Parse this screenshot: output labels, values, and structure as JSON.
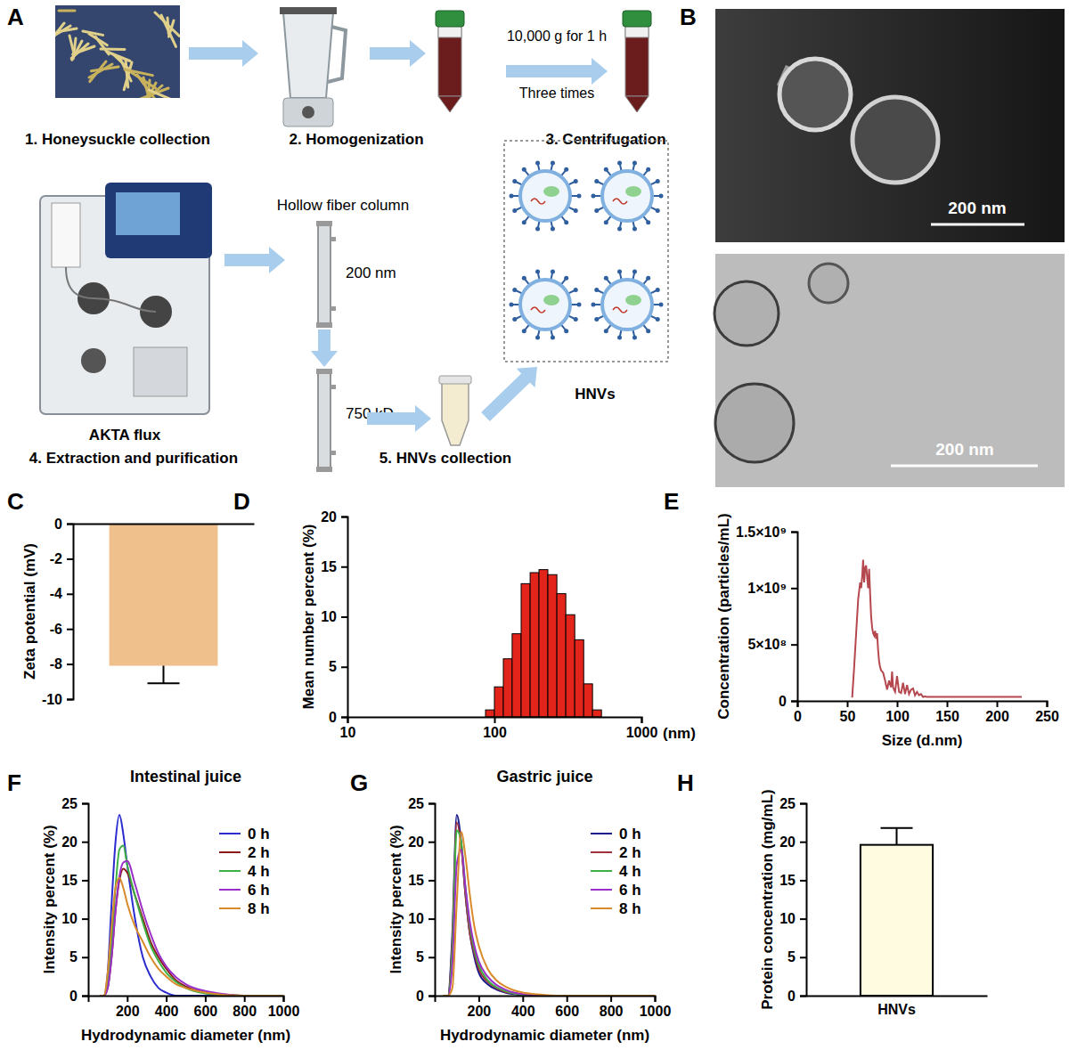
{
  "diagram": {
    "panel": "A",
    "steps": [
      "1. Honeysuckle collection",
      "2. Homogenization",
      "3. Centrifugation",
      "4. Extraction and purification",
      "5. HNVs collection"
    ],
    "centrifugation": [
      "10,000 g for 1 h",
      "Three times"
    ],
    "instrument": "AKTA flux",
    "column_title": "Hollow fiber column",
    "columns": [
      "200 nm",
      "750 kD"
    ],
    "product": "HNVs"
  },
  "micrographs": {
    "panel": "B",
    "scale_bars": [
      "200 nm",
      "200 nm"
    ]
  },
  "chart_data": [
    {
      "panel": "C",
      "type": "bar",
      "categories": [
        null
      ],
      "values": [
        -8.1
      ],
      "errors": [
        1.0
      ],
      "color": "#f0c08c",
      "ylabel": "Zeta potential (mV)",
      "ylim": [
        -10,
        0
      ],
      "yticks": [
        0,
        -2,
        -4,
        -6,
        -8,
        -10
      ]
    },
    {
      "panel": "D",
      "type": "histogram",
      "bins": [
        87,
        100,
        115,
        132,
        152,
        175,
        201,
        231,
        266,
        306,
        352,
        405,
        465,
        535
      ],
      "values": [
        0.7,
        3.0,
        5.8,
        8.3,
        13.3,
        14.4,
        14.7,
        14.2,
        12.3,
        10.2,
        7.7,
        3.3,
        0.7
      ],
      "color": "#e3241b",
      "xlabel": "(nm)",
      "ylabel": "Mean number percent (%)",
      "log": "x",
      "xlim": [
        10,
        1000
      ],
      "xticks": [
        10,
        100,
        1000
      ],
      "ylim": [
        0,
        20
      ],
      "yticks": [
        0,
        5,
        10,
        15,
        20
      ]
    },
    {
      "panel": "E",
      "type": "line",
      "x": [
        55,
        57,
        59,
        61,
        63,
        64,
        65,
        66,
        67,
        68,
        69,
        70,
        71,
        72,
        73,
        74,
        75,
        76,
        77,
        78,
        79,
        80,
        81,
        82,
        83,
        84,
        86,
        88,
        90,
        92,
        94,
        95,
        96,
        98,
        100,
        102,
        104,
        106,
        108,
        110,
        112,
        114,
        116,
        118,
        120,
        122,
        124,
        126,
        128,
        130,
        140,
        160,
        180,
        200,
        225
      ],
      "values": [
        30000000,
        300000000,
        600000000,
        900000000,
        1050000000,
        1000000000,
        1100000000,
        1250000000,
        1050000000,
        1180000000,
        1200000000,
        1100000000,
        1000000000,
        1170000000,
        950000000,
        750000000,
        650000000,
        600000000,
        580000000,
        620000000,
        550000000,
        600000000,
        450000000,
        350000000,
        300000000,
        270000000,
        250000000,
        180000000,
        100000000,
        180000000,
        120000000,
        260000000,
        120000000,
        80000000,
        220000000,
        80000000,
        70000000,
        160000000,
        60000000,
        140000000,
        60000000,
        100000000,
        110000000,
        50000000,
        80000000,
        50000000,
        60000000,
        35000000,
        40000000,
        35000000,
        35000000,
        35000000,
        35000000,
        35000000,
        35000000
      ],
      "color": "#b5484e",
      "xlabel": "Size (d.nm)",
      "ylabel": "Concentration (particles/mL)",
      "xlim": [
        0,
        250
      ],
      "xticks": [
        0,
        50,
        100,
        150,
        200,
        250
      ],
      "ylim": [
        0,
        1500000000
      ],
      "yticks": [
        0,
        {
          "value": 500000000,
          "label": "5×10⁸"
        },
        {
          "value": 1000000000,
          "label": "1×10⁹"
        },
        {
          "value": 1500000000,
          "label": "1.5×10⁹"
        }
      ]
    },
    {
      "panel": "F",
      "type": "line",
      "title": "Intestinal juice",
      "x": [
        60,
        80,
        100,
        120,
        140,
        160,
        180,
        200,
        240,
        280,
        320,
        360,
        400,
        450,
        500,
        600,
        700,
        800,
        1000
      ],
      "series": [
        {
          "name": "0 h",
          "color": "#2b2bd0",
          "values": [
            0,
            0,
            3,
            12,
            20,
            23.5,
            21,
            17,
            10,
            5,
            2.5,
            1,
            0.4,
            0,
            0,
            0,
            0,
            0,
            0
          ]
        },
        {
          "name": "2 h",
          "color": "#8b1a1a",
          "values": [
            0,
            0,
            1,
            5,
            11,
            15,
            16.5,
            16,
            13,
            10,
            7,
            5,
            3.5,
            2,
            1.2,
            0.4,
            0.1,
            0,
            0
          ]
        },
        {
          "name": "4 h",
          "color": "#3cb043",
          "values": [
            0,
            0,
            1.5,
            7,
            14,
            19,
            19.5,
            17,
            13,
            9.5,
            6.5,
            4.5,
            3,
            1.8,
            1,
            0.3,
            0.1,
            0,
            0
          ]
        },
        {
          "name": "6 h",
          "color": "#9b30c8",
          "values": [
            0,
            0,
            1,
            5,
            11,
            15.5,
            17.3,
            17.5,
            14.5,
            11,
            8,
            5.5,
            3.8,
            2.4,
            1.5,
            0.6,
            0.2,
            0,
            0
          ]
        },
        {
          "name": "8 h",
          "color": "#d98b2b",
          "values": [
            0,
            0,
            3,
            9,
            14,
            15.3,
            14,
            12,
            9,
            7,
            5,
            3.5,
            2.5,
            1.5,
            1,
            0.4,
            0.1,
            0,
            0
          ]
        }
      ],
      "xlabel": "Hydrodynamic diameter (nm)",
      "ylabel": "Intensity percent (%)",
      "legend": "top-right",
      "xlim": [
        0,
        1000
      ],
      "xticks": [
        200,
        400,
        600,
        800,
        1000
      ],
      "ylim": [
        0,
        25
      ],
      "yticks": [
        0,
        5,
        10,
        15,
        20,
        25
      ]
    },
    {
      "panel": "G",
      "type": "line",
      "title": "Gastric juice",
      "x": [
        40,
        60,
        80,
        100,
        120,
        140,
        160,
        180,
        200,
        240,
        280,
        320,
        360,
        400,
        450,
        500,
        600,
        700,
        800,
        1000
      ],
      "series": [
        {
          "name": "0 h",
          "color": "#1a1a8c",
          "values": [
            0,
            0,
            8,
            23.5,
            20,
            13,
            8,
            5,
            3,
            1.5,
            0.8,
            0.4,
            0.2,
            0.1,
            0,
            0,
            0,
            0,
            0,
            0
          ]
        },
        {
          "name": "2 h",
          "color": "#a0303a",
          "values": [
            0,
            0,
            7,
            22.5,
            19.5,
            13,
            8,
            5.5,
            3.5,
            1.8,
            1,
            0.5,
            0.3,
            0.1,
            0,
            0,
            0,
            0,
            0,
            0
          ]
        },
        {
          "name": "4 h",
          "color": "#3cb043",
          "values": [
            0,
            0,
            6,
            21.5,
            20,
            14,
            9,
            6,
            4,
            2,
            1.1,
            0.6,
            0.3,
            0.1,
            0,
            0,
            0,
            0,
            0,
            0
          ]
        },
        {
          "name": "6 h",
          "color": "#9b30c8",
          "values": [
            0,
            0,
            4,
            17,
            19,
            14,
            9.5,
            6.5,
            4.5,
            2.5,
            1.4,
            0.8,
            0.4,
            0.2,
            0.1,
            0,
            0,
            0,
            0,
            0
          ]
        },
        {
          "name": "8 h",
          "color": "#d98b2b",
          "values": [
            0,
            0,
            1,
            12,
            21.3,
            18,
            13,
            9,
            6.5,
            3.5,
            2,
            1.2,
            0.7,
            0.4,
            0.2,
            0.1,
            0,
            0,
            0,
            0
          ]
        }
      ],
      "xlabel": "Hydrodynamic diameter (nm)",
      "ylabel": "Intensity percent (%)",
      "legend": "top-right",
      "xlim": [
        0,
        1000
      ],
      "xticks": [
        200,
        400,
        600,
        800,
        1000
      ],
      "ylim": [
        0,
        25
      ],
      "yticks": [
        0,
        5,
        10,
        15,
        20,
        25
      ]
    },
    {
      "panel": "H",
      "type": "bar",
      "categories": [
        "HNVs"
      ],
      "values": [
        19.6
      ],
      "errors": [
        2.2
      ],
      "color": "#fffbe0",
      "ylabel": "Protein concentration (mg/mL)",
      "ylim": [
        0,
        25
      ],
      "yticks": [
        0,
        5,
        10,
        15,
        20,
        25
      ]
    }
  ]
}
